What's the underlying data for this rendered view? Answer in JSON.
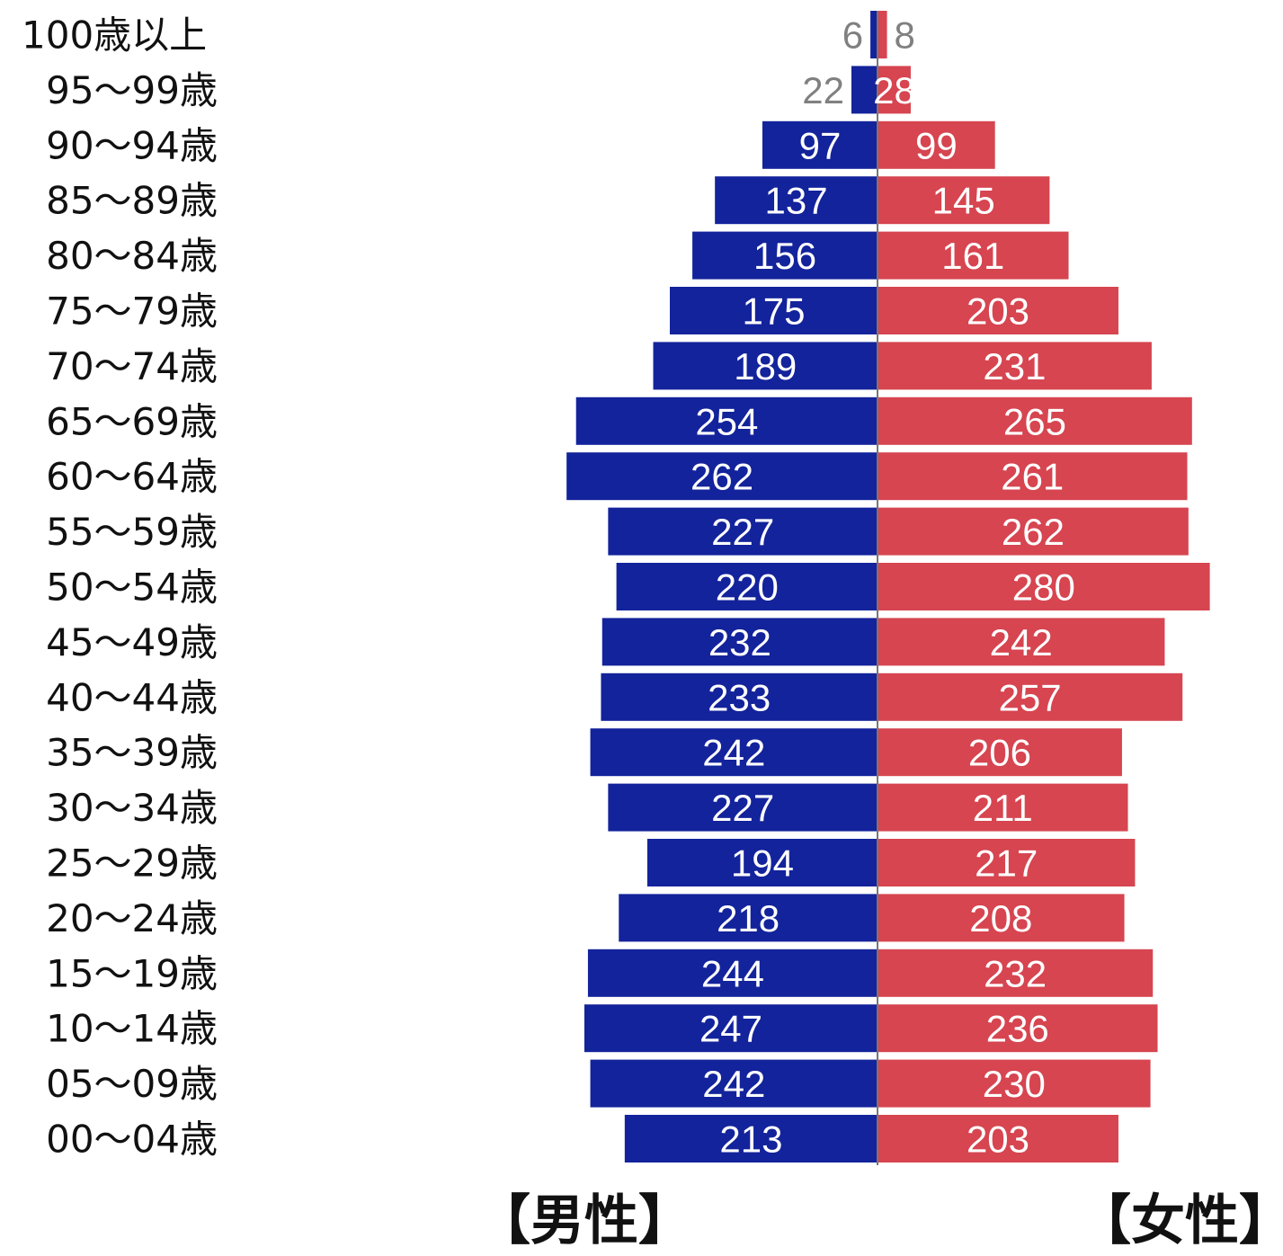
{
  "chart_data": {
    "type": "bar",
    "orientation": "horizontal-diverging",
    "categories": [
      "100歳以上",
      "95～99歳",
      "90～94歳",
      "85～89歳",
      "80～84歳",
      "75～79歳",
      "70～74歳",
      "65～69歳",
      "60～64歳",
      "55～59歳",
      "50～54歳",
      "45～49歳",
      "40～44歳",
      "35～39歳",
      "30～34歳",
      "25～29歳",
      "20～24歳",
      "15～19歳",
      "10～14歳",
      "05～09歳",
      "00～04歳"
    ],
    "series": [
      {
        "name": "【男性】",
        "side": "left",
        "color": "#13239b",
        "values": [
          6,
          22,
          97,
          137,
          156,
          175,
          189,
          254,
          262,
          227,
          220,
          232,
          233,
          242,
          227,
          194,
          218,
          244,
          247,
          242,
          213
        ]
      },
      {
        "name": "【女性】",
        "side": "right",
        "color": "#d64550",
        "values": [
          8,
          28,
          99,
          145,
          161,
          203,
          231,
          265,
          261,
          262,
          280,
          242,
          257,
          206,
          211,
          217,
          208,
          232,
          236,
          230,
          203
        ]
      }
    ],
    "label_color_inside": "#ffffff",
    "label_color_outside": "#808080",
    "axis_color": "#777777"
  }
}
